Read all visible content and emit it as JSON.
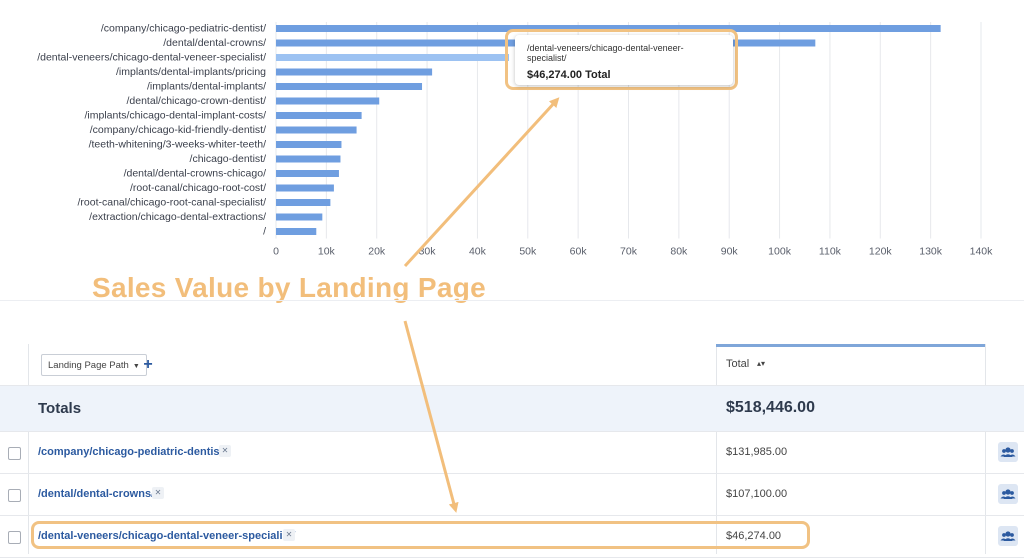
{
  "chart_data": {
    "type": "bar",
    "orientation": "horizontal",
    "categories": [
      "/company/chicago-pediatric-dentist/",
      "/dental/dental-crowns/",
      "/dental-veneers/chicago-dental-veneer-specialist/",
      "/implants/dental-implants/pricing",
      "/implants/dental-implants/",
      "/dental/chicago-crown-dentist/",
      "/implants/chicago-dental-implant-costs/",
      "/company/chicago-kid-friendly-dentist/",
      "/teeth-whitening/3-weeks-whiter-teeth/",
      "/chicago-dentist/",
      "/dental/dental-crowns-chicago/",
      "/root-canal/chicago-root-cost/",
      "/root-canal/chicago-root-canal-specialist/",
      "/extraction/chicago-dental-extractions/",
      "/"
    ],
    "values": [
      131985,
      107100,
      46274,
      31000,
      29000,
      20500,
      17000,
      16000,
      13000,
      12800,
      12500,
      11500,
      10800,
      9200,
      8000
    ],
    "x_ticks": [
      "0",
      "10k",
      "20k",
      "30k",
      "40k",
      "50k",
      "60k",
      "70k",
      "80k",
      "90k",
      "100k",
      "110k",
      "120k",
      "130k",
      "140k"
    ],
    "xlim": [
      0,
      140000
    ],
    "highlighted_index": 2,
    "bar_color": "#6f9ee0",
    "highlight_color": "#9cc2f2",
    "grid": true
  },
  "tooltip": {
    "path": "/dental-veneers/chicago-dental-veneer-specialist/",
    "value": "$46,274.00 Total"
  },
  "annotation": {
    "text": "Sales Value by Landing Page",
    "color": "#f2be7b"
  },
  "table": {
    "dimension_label": "Landing Page Path",
    "add_label": "+",
    "total_header": "Total",
    "totals_label": "Totals",
    "totals_value": "$518,446.00",
    "rows": [
      {
        "path": "/company/chicago-pediatric-dentist/",
        "value": "$131,985.00"
      },
      {
        "path": "/dental/dental-crowns/",
        "value": "$107,100.00"
      },
      {
        "path": "/dental-veneers/chicago-dental-veneer-specialist/",
        "value": "$46,274.00"
      }
    ]
  }
}
